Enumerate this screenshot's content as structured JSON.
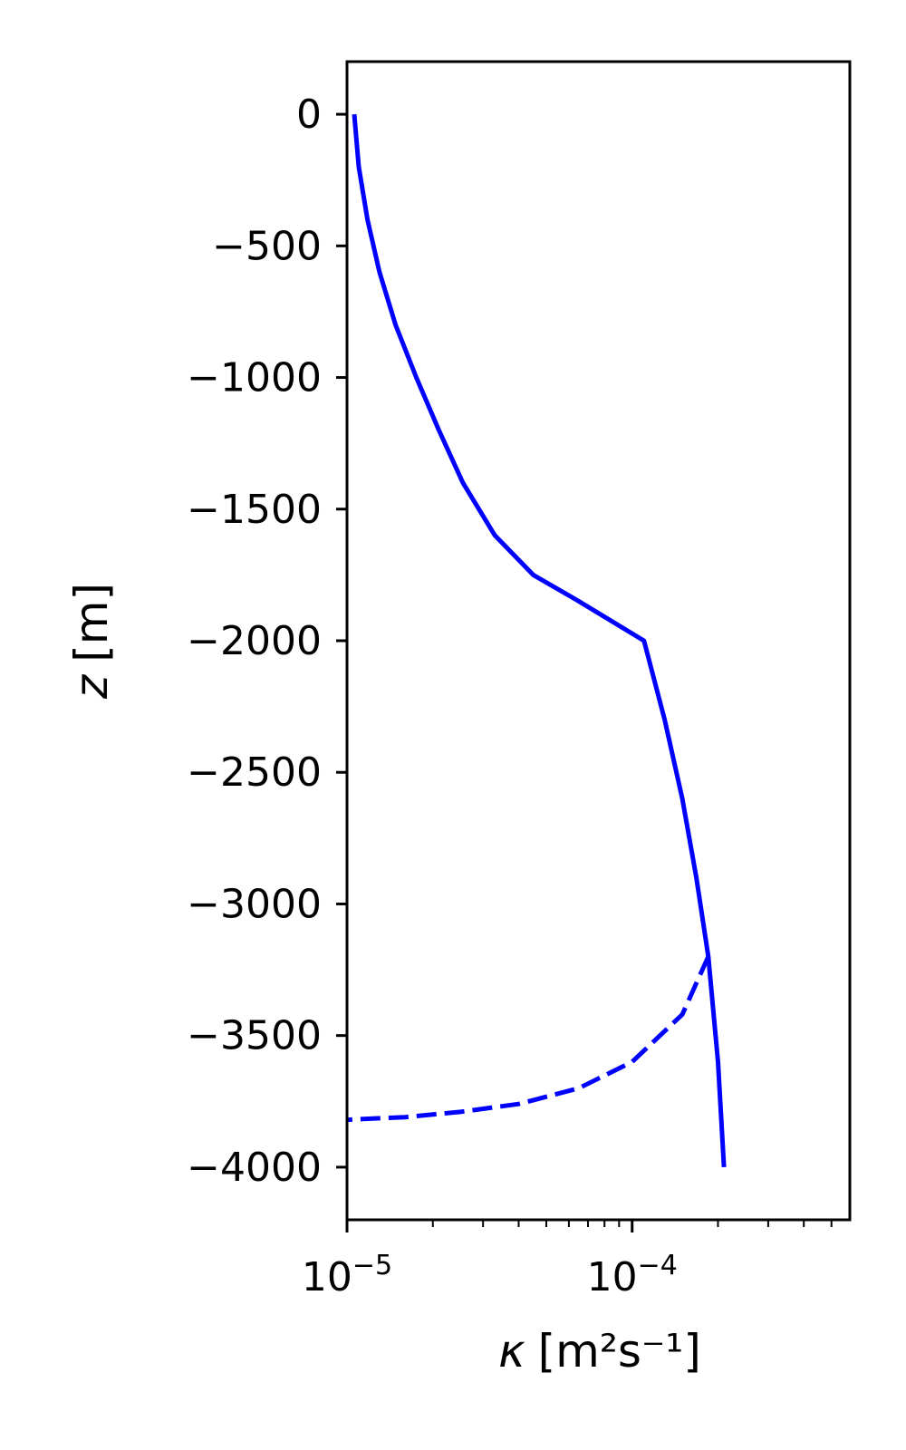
{
  "chart_data": {
    "type": "line",
    "xscale": "log",
    "xlim": [
      1e-05,
      0.00058
    ],
    "ylim": [
      -4200,
      200
    ],
    "xlabel": {
      "symbol": "κ",
      "text": "[m²s⁻¹]"
    },
    "ylabel": {
      "symbol": "z",
      "text": "[m]"
    },
    "x_ticks": [
      {
        "value": 1e-05,
        "base": "10",
        "exp": "−5"
      },
      {
        "value": 0.0001,
        "base": "10",
        "exp": "−4"
      }
    ],
    "y_ticks": [
      {
        "value": 0,
        "label": "0"
      },
      {
        "value": -500,
        "label": "−500"
      },
      {
        "value": -1000,
        "label": "−1000"
      },
      {
        "value": -1500,
        "label": "−1500"
      },
      {
        "value": -2000,
        "label": "−2000"
      },
      {
        "value": -2500,
        "label": "−2500"
      },
      {
        "value": -3000,
        "label": "−3000"
      },
      {
        "value": -3500,
        "label": "−3500"
      },
      {
        "value": -4000,
        "label": "−4000"
      }
    ],
    "grid": false,
    "series": [
      {
        "style": "solid",
        "color": "#0000ff",
        "points": [
          [
            1.06e-05,
            0
          ],
          [
            1.1e-05,
            -200
          ],
          [
            1.18e-05,
            -400
          ],
          [
            1.3e-05,
            -600
          ],
          [
            1.48e-05,
            -800
          ],
          [
            1.75e-05,
            -1000
          ],
          [
            2.1e-05,
            -1200
          ],
          [
            2.55e-05,
            -1400
          ],
          [
            3.3e-05,
            -1600
          ],
          [
            4.5e-05,
            -1750
          ],
          [
            6.5e-05,
            -1850
          ],
          [
            0.00011,
            -2000
          ],
          [
            0.00013,
            -2300
          ],
          [
            0.00015,
            -2600
          ],
          [
            0.000168,
            -2900
          ],
          [
            0.000185,
            -3200
          ],
          [
            0.0002,
            -3600
          ],
          [
            0.00021,
            -4000
          ]
        ]
      },
      {
        "style": "dashed",
        "color": "#0000ff",
        "points": [
          [
            0.000185,
            -3200
          ],
          [
            0.00015,
            -3420
          ],
          [
            0.0001,
            -3600
          ],
          [
            6.5e-05,
            -3700
          ],
          [
            4e-05,
            -3760
          ],
          [
            2.5e-05,
            -3790
          ],
          [
            1.6e-05,
            -3810
          ],
          [
            1e-05,
            -3820
          ]
        ]
      }
    ]
  }
}
